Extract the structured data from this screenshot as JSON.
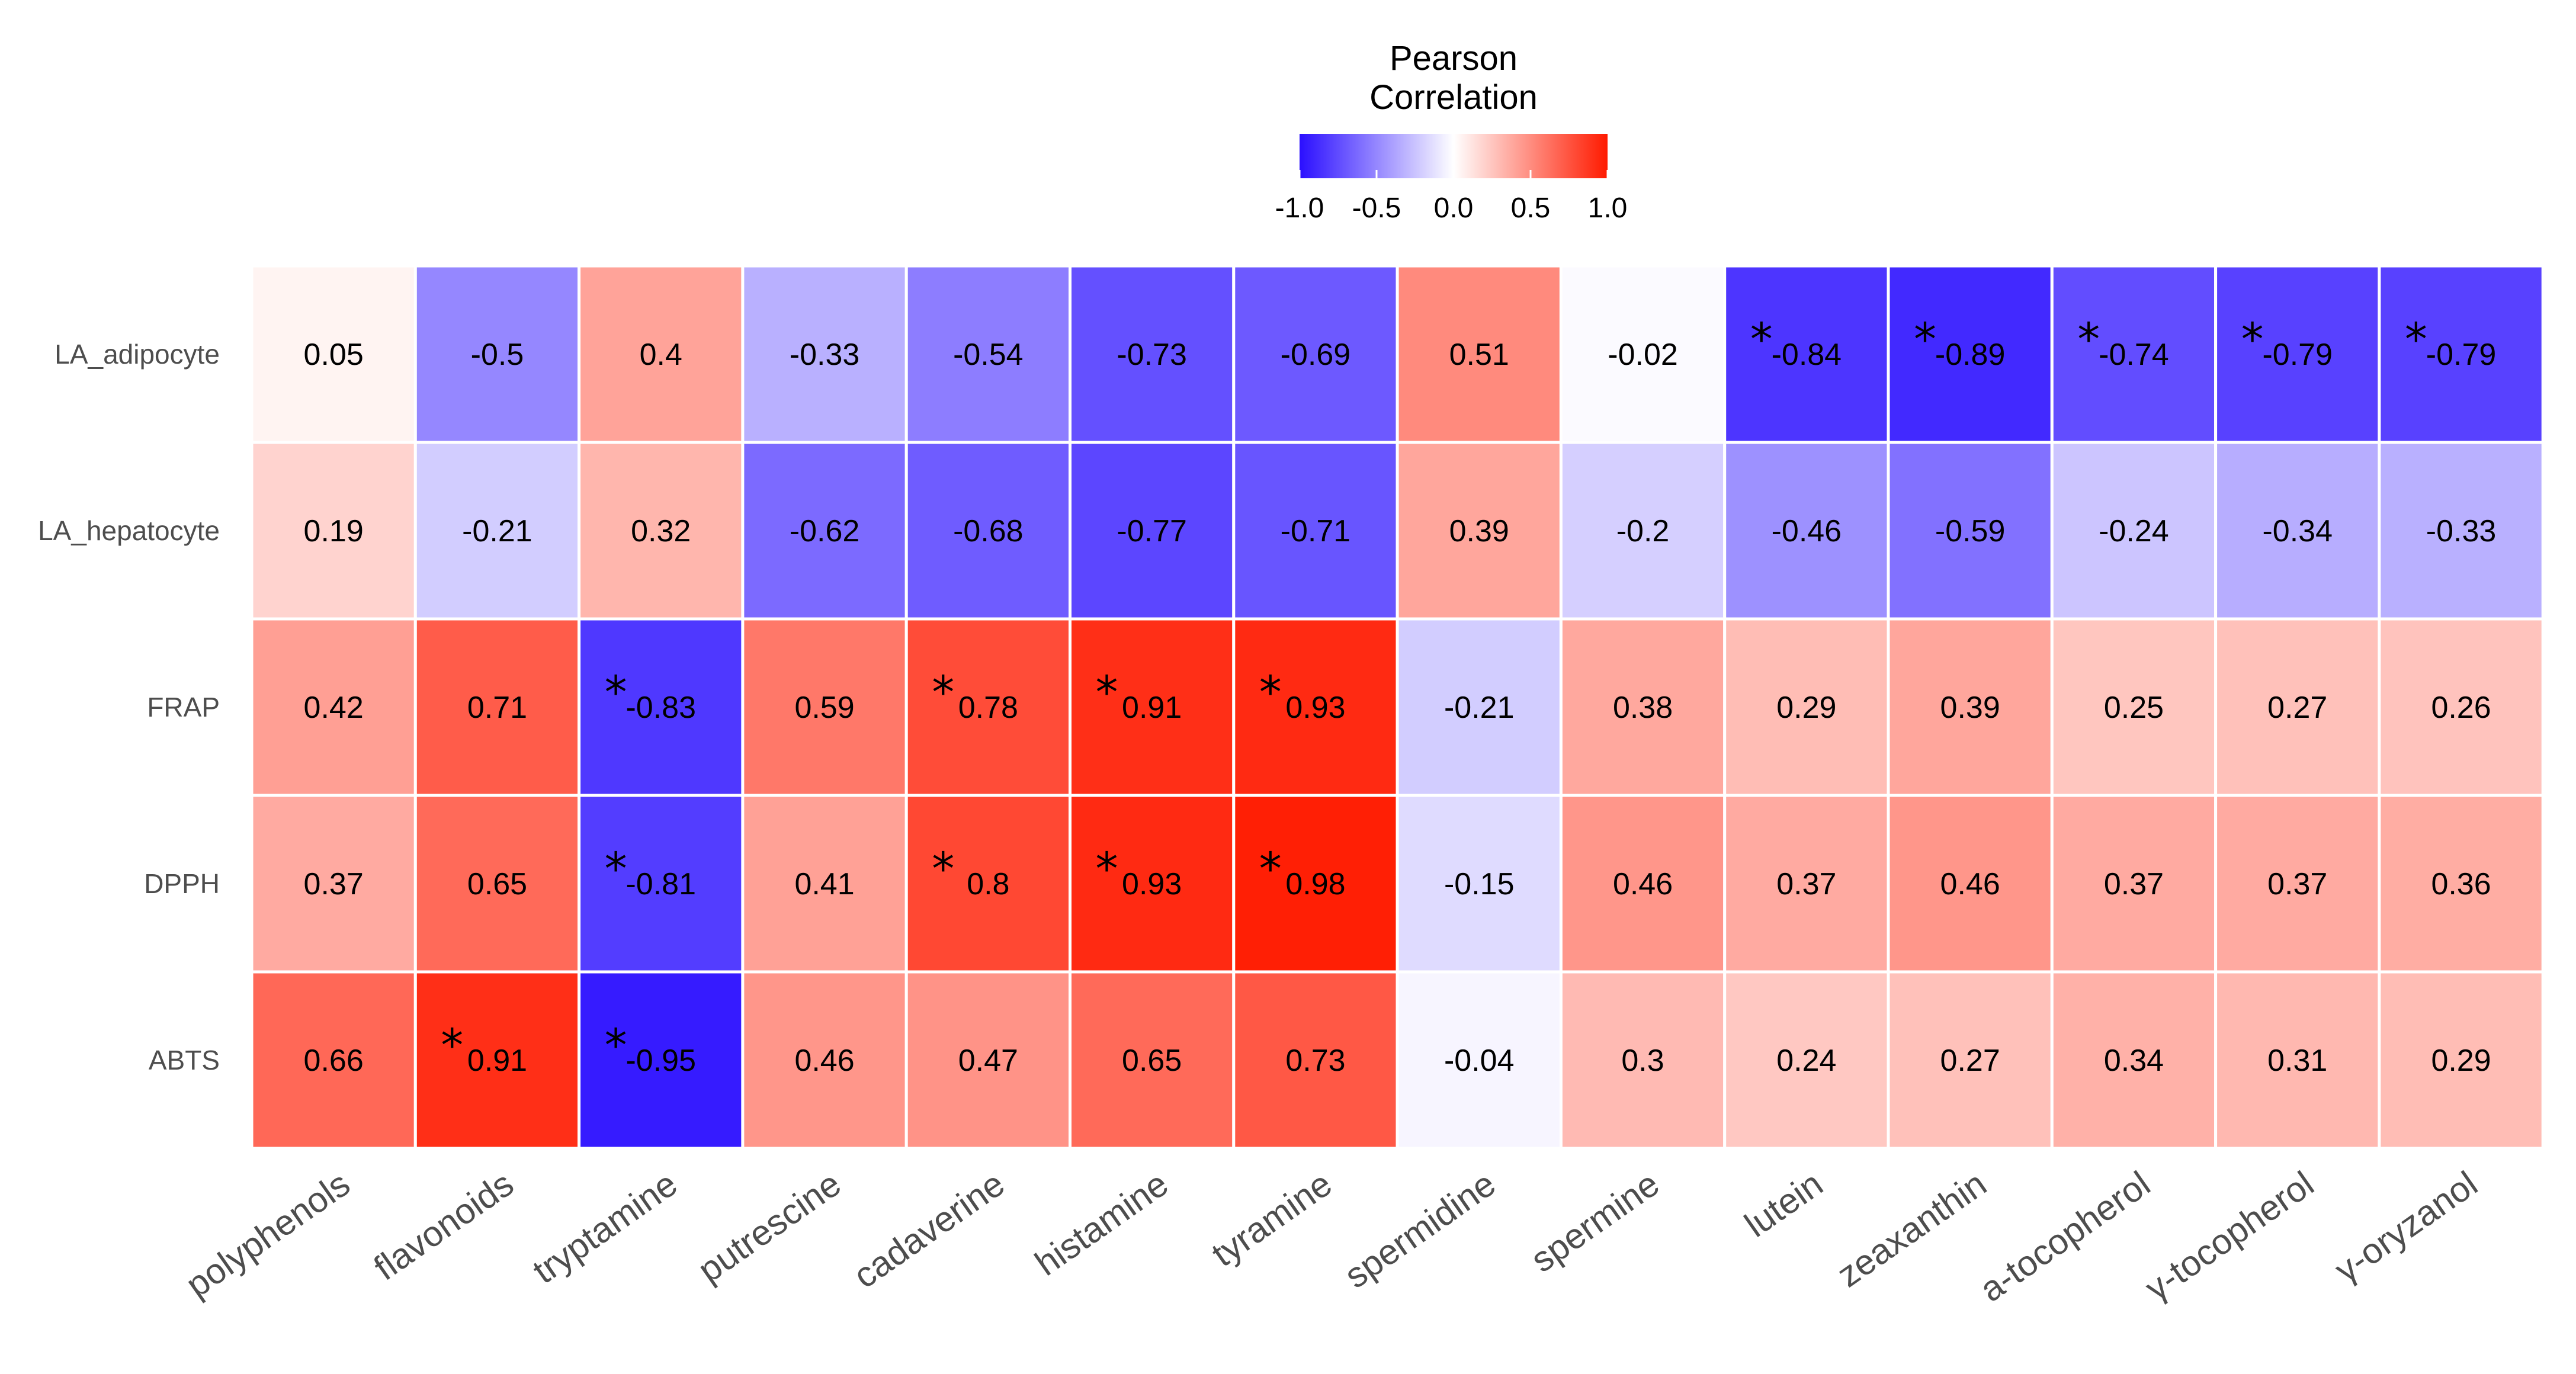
{
  "chart_data": {
    "type": "heatmap",
    "title": "",
    "xlabel": "",
    "ylabel": "",
    "legend": {
      "title_lines": [
        "Pearson",
        "Correlation"
      ],
      "ticks": [
        "-1.0",
        "-0.5",
        "0.0",
        "0.5",
        "1.0"
      ],
      "range": [
        -1.0,
        1.0
      ],
      "placement": "top-center"
    },
    "colors": {
      "low": "#2b0fff",
      "mid": "#ffffff",
      "high": "#ff1a00"
    },
    "rows": [
      "LA_adipocyte",
      "LA_hepatocyte",
      "FRAP",
      "DPPH",
      "ABTS"
    ],
    "columns": [
      "polyphenols",
      "flavonoids",
      "tryptamine",
      "putrescine",
      "cadaverine",
      "histamine",
      "tyramine",
      "spermidine",
      "spermine",
      "lutein",
      "zeaxanthin",
      "a-tocopherol",
      "γ-tocopherol",
      "γ-oryzanol"
    ],
    "values": [
      [
        0.05,
        -0.5,
        0.4,
        -0.33,
        -0.54,
        -0.73,
        -0.69,
        0.51,
        -0.02,
        -0.84,
        -0.89,
        -0.74,
        -0.79,
        -0.79
      ],
      [
        0.19,
        -0.21,
        0.32,
        -0.62,
        -0.68,
        -0.77,
        -0.71,
        0.39,
        -0.2,
        -0.46,
        -0.59,
        -0.24,
        -0.34,
        -0.33
      ],
      [
        0.42,
        0.71,
        -0.83,
        0.59,
        0.78,
        0.91,
        0.93,
        -0.21,
        0.38,
        0.29,
        0.39,
        0.25,
        0.27,
        0.26
      ],
      [
        0.37,
        0.65,
        -0.81,
        0.41,
        0.8,
        0.93,
        0.98,
        -0.15,
        0.46,
        0.37,
        0.46,
        0.37,
        0.37,
        0.36
      ],
      [
        0.66,
        0.91,
        -0.95,
        0.46,
        0.47,
        0.65,
        0.73,
        -0.04,
        0.3,
        0.24,
        0.27,
        0.34,
        0.31,
        0.29
      ]
    ],
    "labels": [
      [
        "0.05",
        "-0.5",
        "0.4",
        "-0.33",
        "-0.54",
        "-0.73",
        "-0.69",
        "0.51",
        "-0.02",
        "-0.84",
        "-0.89",
        "-0.74",
        "-0.79",
        "-0.79"
      ],
      [
        "0.19",
        "-0.21",
        "0.32",
        "-0.62",
        "-0.68",
        "-0.77",
        "-0.71",
        "0.39",
        "-0.2",
        "-0.46",
        "-0.59",
        "-0.24",
        "-0.34",
        "-0.33"
      ],
      [
        "0.42",
        "0.71",
        "-0.83",
        "0.59",
        "0.78",
        "0.91",
        "0.93",
        "-0.21",
        "0.38",
        "0.29",
        "0.39",
        "0.25",
        "0.27",
        "0.26"
      ],
      [
        "0.37",
        "0.65",
        "-0.81",
        "0.41",
        "0.8",
        "0.93",
        "0.98",
        "-0.15",
        "0.46",
        "0.37",
        "0.46",
        "0.37",
        "0.37",
        "0.36"
      ],
      [
        "0.66",
        "0.91",
        "-0.95",
        "0.46",
        "0.47",
        "0.65",
        "0.73",
        "-0.04",
        "0.3",
        "0.24",
        "0.27",
        "0.34",
        "0.31",
        "0.29"
      ]
    ],
    "significance_marker": "*",
    "significant": [
      [
        false,
        false,
        false,
        false,
        false,
        false,
        false,
        false,
        false,
        true,
        true,
        true,
        true,
        true
      ],
      [
        false,
        false,
        false,
        false,
        false,
        false,
        false,
        false,
        false,
        false,
        false,
        false,
        false,
        false
      ],
      [
        false,
        false,
        true,
        false,
        true,
        true,
        true,
        false,
        false,
        false,
        false,
        false,
        false,
        false
      ],
      [
        false,
        false,
        true,
        false,
        true,
        true,
        true,
        false,
        false,
        false,
        false,
        false,
        false,
        false
      ],
      [
        false,
        true,
        true,
        false,
        false,
        false,
        false,
        false,
        false,
        false,
        false,
        false,
        false,
        false
      ]
    ]
  }
}
